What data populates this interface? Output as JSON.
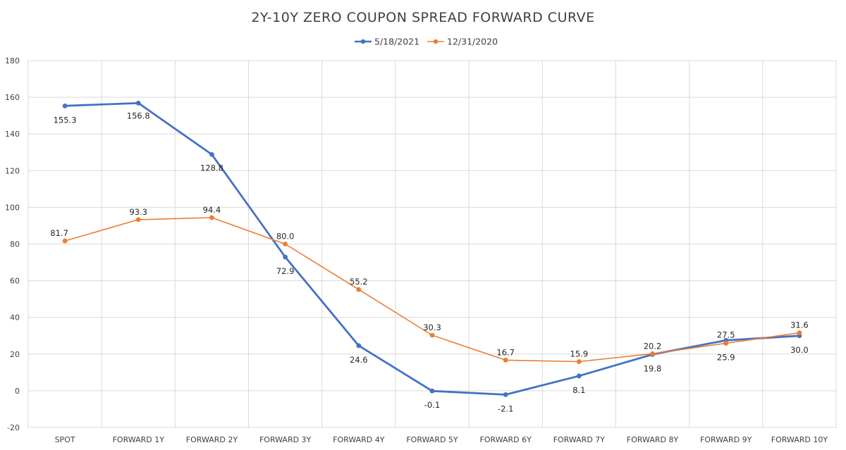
{
  "chart_data": {
    "type": "line",
    "title": "2Y-10Y ZERO COUPON SPREAD FORWARD CURVE",
    "categories": [
      "SPOT",
      "FORWARD 1Y",
      "FORWARD 2Y",
      "FORWARD 3Y",
      "FORWARD 4Y",
      "FORWARD 5Y",
      "FORWARD 6Y",
      "FORWARD 7Y",
      "FORWARD 8Y",
      "FORWARD 9Y",
      "FORWARD 10Y"
    ],
    "series": [
      {
        "name": "5/18/2021",
        "color": "#4472c4",
        "values": [
          155.3,
          156.8,
          128.8,
          72.9,
          24.6,
          -0.1,
          -2.1,
          8.1,
          19.8,
          27.5,
          30.0
        ],
        "labels": [
          "155.3",
          "156.8",
          "128.8",
          "72.9",
          "24.6",
          "-0.1",
          "-2.1",
          "8.1",
          "19.8",
          "27.5",
          "30.0"
        ]
      },
      {
        "name": "12/31/2020",
        "color": "#ed7d31",
        "values": [
          81.7,
          93.3,
          94.4,
          80.0,
          55.2,
          30.3,
          16.7,
          15.9,
          20.2,
          25.9,
          31.6
        ],
        "labels": [
          "81.7",
          "93.3",
          "94.4",
          "80.0",
          "55.2",
          "30.3",
          "16.7",
          "15.9",
          "20.2",
          "25.9",
          "31.6"
        ]
      }
    ],
    "ylim": [
      -20,
      180
    ],
    "yticks": [
      -20,
      0,
      20,
      40,
      60,
      80,
      100,
      120,
      140,
      160,
      180
    ],
    "ytick_labels": [
      "-20",
      "0",
      "20",
      "40",
      "60",
      "80",
      "100",
      "120",
      "140",
      "160",
      "180"
    ],
    "grid": true,
    "legend_position": "top-center",
    "xlabel": "",
    "ylabel": ""
  }
}
